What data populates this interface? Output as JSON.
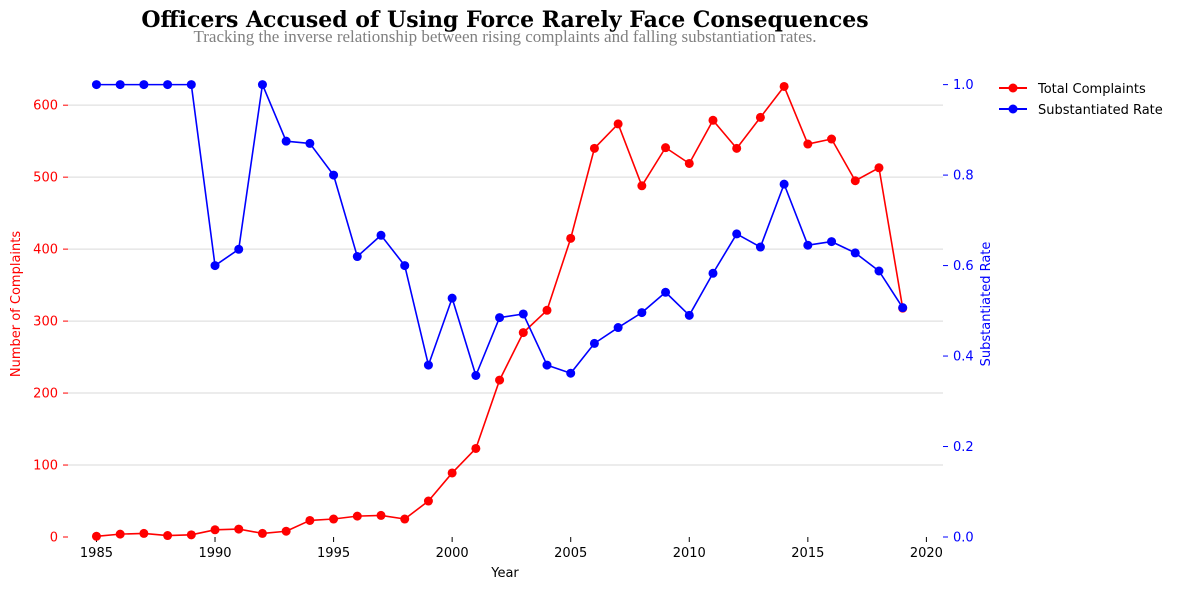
{
  "chart_data": {
    "type": "line",
    "title": "Officers Accused of Using Force Rarely Face Consequences",
    "subtitle": "Tracking the inverse relationship between rising complaints and falling substantiation rates.",
    "xlabel": "Year",
    "ylabel_left": "Number of Complaints",
    "ylabel_right": "Substantiated Rate",
    "x": [
      1985,
      1986,
      1987,
      1988,
      1989,
      1990,
      1991,
      1992,
      1993,
      1994,
      1995,
      1996,
      1997,
      1998,
      1999,
      2000,
      2001,
      2002,
      2003,
      2004,
      2005,
      2006,
      2007,
      2008,
      2009,
      2010,
      2011,
      2012,
      2013,
      2014,
      2015,
      2016,
      2017,
      2018,
      2019
    ],
    "xlim": [
      1983.8,
      2020.7
    ],
    "xticks": [
      1985,
      1990,
      1995,
      2000,
      2005,
      2010,
      2015,
      2020
    ],
    "ylim_left": [
      0,
      660
    ],
    "yticks_left": [
      0,
      100,
      200,
      300,
      400,
      500,
      600
    ],
    "ylim_right": [
      0,
      1.05
    ],
    "yticks_right": [
      0.0,
      0.2,
      0.4,
      0.6,
      0.8,
      1.0
    ],
    "ytick_labels_right": [
      "0.0",
      "0.2",
      "0.4",
      "0.6",
      "0.8",
      "1.0"
    ],
    "grid": "horizontal",
    "legend_position": "top-right, outside plot",
    "series": [
      {
        "name": "Total Complaints",
        "axis": "left",
        "color": "#ff0000",
        "values": [
          1,
          4,
          5,
          2,
          3,
          10,
          11,
          5,
          8,
          23,
          25,
          29,
          30,
          25,
          50,
          89,
          123,
          218,
          284,
          315,
          415,
          540,
          574,
          488,
          541,
          519,
          579,
          540,
          583,
          626,
          546,
          553,
          495,
          513,
          318
        ]
      },
      {
        "name": "Substantiated Rate",
        "axis": "right",
        "color": "#0000ff",
        "values": [
          1.0,
          1.0,
          1.0,
          1.0,
          1.0,
          0.6,
          0.636,
          1.0,
          0.875,
          0.87,
          0.8,
          0.62,
          0.667,
          0.6,
          0.38,
          0.528,
          0.357,
          0.485,
          0.493,
          0.38,
          0.362,
          0.428,
          0.463,
          0.496,
          0.541,
          0.49,
          0.583,
          0.67,
          0.641,
          0.78,
          0.645,
          0.653,
          0.628,
          0.588,
          0.507
        ]
      }
    ]
  }
}
